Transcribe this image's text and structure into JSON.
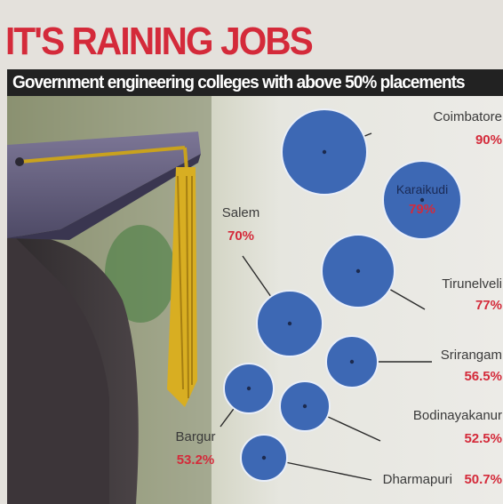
{
  "title": "IT'S RAINING JOBS",
  "subtitle": "Government engineering colleges with above 50% placements",
  "colors": {
    "accent": "#d42a3a",
    "bubble": "#3d68b4",
    "bubble_edge": "#e9eef8",
    "subtitle_bar": "#222222"
  },
  "chart_data": {
    "type": "bubble",
    "title": "IT'S RAINING JOBS",
    "subtitle": "Government engineering colleges with above 50% placements",
    "unit": "%",
    "series": [
      {
        "name": "Coimbatore",
        "label": "90%",
        "value": 90
      },
      {
        "name": "Karaikudi",
        "label": "79%",
        "value": 79
      },
      {
        "name": "Tirunelveli",
        "label": "77%",
        "value": 77
      },
      {
        "name": "Salem",
        "label": "70%",
        "value": 70
      },
      {
        "name": "Srirangam",
        "label": "56.5%",
        "value": 56.5
      },
      {
        "name": "Bargur",
        "label": "53.2%",
        "value": 53.2
      },
      {
        "name": "Bodinayakanur",
        "label": "52.5%",
        "value": 52.5
      },
      {
        "name": "Dharmapuri",
        "label": "50.7%",
        "value": 50.7
      }
    ]
  }
}
